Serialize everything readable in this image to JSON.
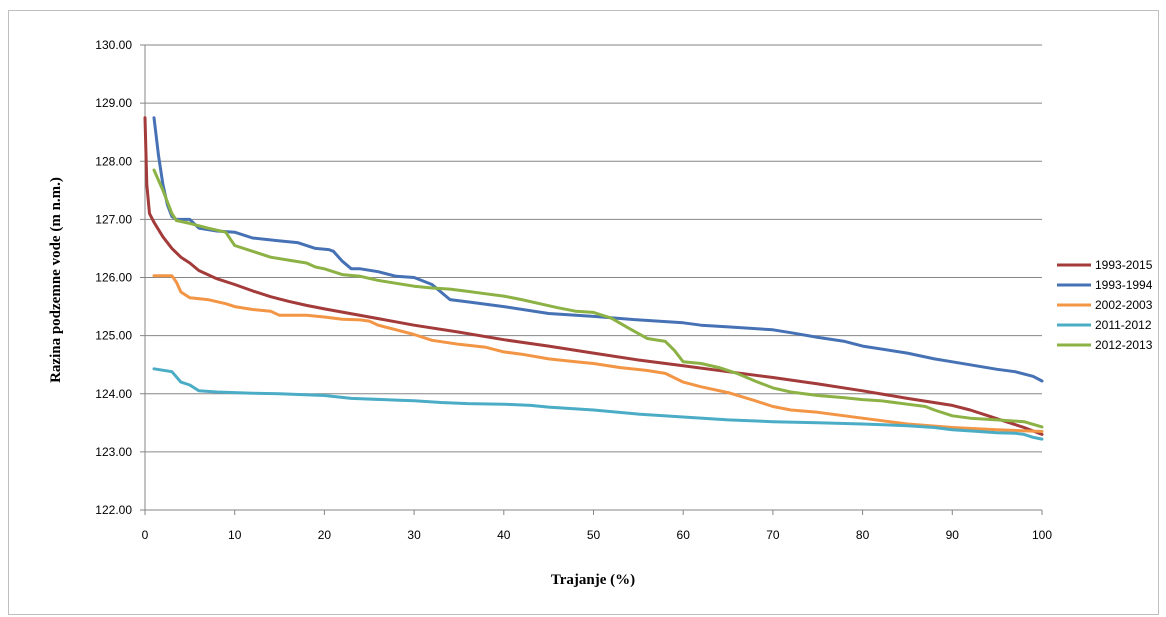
{
  "chart_data": {
    "type": "line",
    "title": "",
    "xlabel": "Trajanje (%)",
    "ylabel": "Razina podzemne vode (m  n.m.)",
    "xlim": [
      0,
      100
    ],
    "ylim": [
      122,
      130
    ],
    "xticks": [
      0,
      10,
      20,
      30,
      40,
      50,
      60,
      70,
      80,
      90,
      100
    ],
    "yticks": [
      122,
      123,
      124,
      125,
      126,
      127,
      128,
      129,
      130
    ],
    "xtick_labels": [
      "0",
      "10",
      "20",
      "30",
      "40",
      "50",
      "60",
      "70",
      "80",
      "90",
      "100"
    ],
    "ytick_labels": [
      "122.00",
      "123.00",
      "124.00",
      "125.00",
      "126.00",
      "127.00",
      "128.00",
      "129.00",
      "130.00"
    ],
    "grid": "horizontal",
    "legend_position": "right",
    "series": [
      {
        "name": "1993-2015",
        "color": "#A33B3A",
        "x": [
          0,
          0.2,
          0.5,
          1,
          2,
          3,
          4,
          5,
          6,
          8,
          10,
          12,
          14,
          16,
          18,
          20,
          25,
          30,
          35,
          40,
          45,
          50,
          55,
          60,
          65,
          70,
          75,
          80,
          85,
          90,
          92,
          94,
          96,
          98,
          100
        ],
        "y": [
          128.75,
          127.6,
          127.1,
          126.95,
          126.7,
          126.5,
          126.35,
          126.25,
          126.12,
          125.98,
          125.88,
          125.77,
          125.67,
          125.59,
          125.52,
          125.46,
          125.32,
          125.18,
          125.06,
          124.93,
          124.82,
          124.7,
          124.58,
          124.48,
          124.38,
          124.28,
          124.17,
          124.05,
          123.92,
          123.8,
          123.72,
          123.62,
          123.52,
          123.42,
          123.3
        ]
      },
      {
        "name": "1993-1994",
        "color": "#4672B5",
        "x": [
          1,
          1.5,
          2,
          2.5,
          3,
          3.5,
          5,
          6,
          8,
          10,
          12,
          15,
          17,
          19,
          20.5,
          21,
          22,
          23,
          24,
          26,
          28,
          30,
          32,
          34,
          36,
          40,
          45,
          50,
          55,
          60,
          62,
          65,
          70,
          72,
          75,
          78,
          80,
          85,
          88,
          90,
          95,
          97,
          99,
          100
        ],
        "y": [
          128.75,
          128.1,
          127.6,
          127.25,
          127.05,
          127.0,
          127.0,
          126.85,
          126.8,
          126.78,
          126.68,
          126.63,
          126.6,
          126.5,
          126.48,
          126.45,
          126.28,
          126.15,
          126.15,
          126.1,
          126.02,
          126.0,
          125.88,
          125.62,
          125.58,
          125.5,
          125.38,
          125.33,
          125.27,
          125.22,
          125.18,
          125.15,
          125.1,
          125.05,
          124.97,
          124.9,
          124.82,
          124.7,
          124.6,
          124.55,
          124.42,
          124.38,
          124.3,
          124.22
        ]
      },
      {
        "name": "2002-2003",
        "color": "#F29545",
        "x": [
          1,
          2,
          3,
          3.5,
          4,
          5,
          7,
          9,
          10,
          12,
          14,
          15,
          18,
          20,
          22,
          24,
          25,
          26,
          28,
          30,
          32,
          35,
          38,
          40,
          42,
          45,
          48,
          50,
          53,
          56,
          58,
          60,
          62,
          65,
          68,
          70,
          72,
          75,
          80,
          85,
          90,
          95,
          100
        ],
        "y": [
          126.03,
          126.03,
          126.03,
          125.92,
          125.75,
          125.65,
          125.62,
          125.55,
          125.5,
          125.45,
          125.42,
          125.35,
          125.35,
          125.32,
          125.28,
          125.27,
          125.25,
          125.18,
          125.1,
          125.02,
          124.92,
          124.85,
          124.8,
          124.72,
          124.68,
          124.6,
          124.55,
          124.52,
          124.45,
          124.4,
          124.35,
          124.2,
          124.12,
          124.02,
          123.88,
          123.78,
          123.72,
          123.68,
          123.58,
          123.48,
          123.42,
          123.38,
          123.35
        ]
      },
      {
        "name": "2011-2012",
        "color": "#4BACC6",
        "x": [
          1,
          3,
          4,
          5,
          6,
          8,
          12,
          15,
          20,
          23,
          28,
          30,
          33,
          36,
          40,
          43,
          45,
          50,
          55,
          60,
          65,
          70,
          75,
          80,
          85,
          88,
          90,
          93,
          95,
          97,
          98,
          99,
          100
        ],
        "y": [
          124.43,
          124.38,
          124.2,
          124.15,
          124.05,
          124.03,
          124.01,
          124.0,
          123.97,
          123.92,
          123.89,
          123.88,
          123.85,
          123.83,
          123.82,
          123.8,
          123.77,
          123.72,
          123.65,
          123.6,
          123.55,
          123.52,
          123.5,
          123.48,
          123.45,
          123.42,
          123.38,
          123.35,
          123.33,
          123.32,
          123.3,
          123.25,
          123.22
        ]
      },
      {
        "name": "2012-2013",
        "color": "#8CB145",
        "x": [
          1,
          2,
          2.5,
          3,
          3.5,
          5,
          7,
          9,
          10,
          12,
          14,
          16,
          18,
          19,
          20,
          22,
          24,
          26,
          28,
          30,
          32,
          34,
          36,
          38,
          40,
          42,
          44,
          46,
          48,
          50,
          52,
          54,
          56,
          58,
          59,
          60,
          62,
          64,
          66,
          68,
          70,
          72,
          75,
          78,
          80,
          82,
          85,
          87,
          88,
          90,
          92,
          95,
          98,
          100
        ],
        "y": [
          127.85,
          127.5,
          127.3,
          127.1,
          126.98,
          126.93,
          126.85,
          126.78,
          126.55,
          126.45,
          126.35,
          126.3,
          126.25,
          126.18,
          126.15,
          126.05,
          126.02,
          125.95,
          125.9,
          125.85,
          125.82,
          125.8,
          125.76,
          125.72,
          125.68,
          125.62,
          125.55,
          125.48,
          125.42,
          125.4,
          125.3,
          125.12,
          124.95,
          124.9,
          124.75,
          124.55,
          124.52,
          124.45,
          124.35,
          124.22,
          124.1,
          124.03,
          123.97,
          123.93,
          123.9,
          123.88,
          123.82,
          123.78,
          123.72,
          123.62,
          123.58,
          123.55,
          123.52,
          123.43
        ]
      }
    ]
  }
}
